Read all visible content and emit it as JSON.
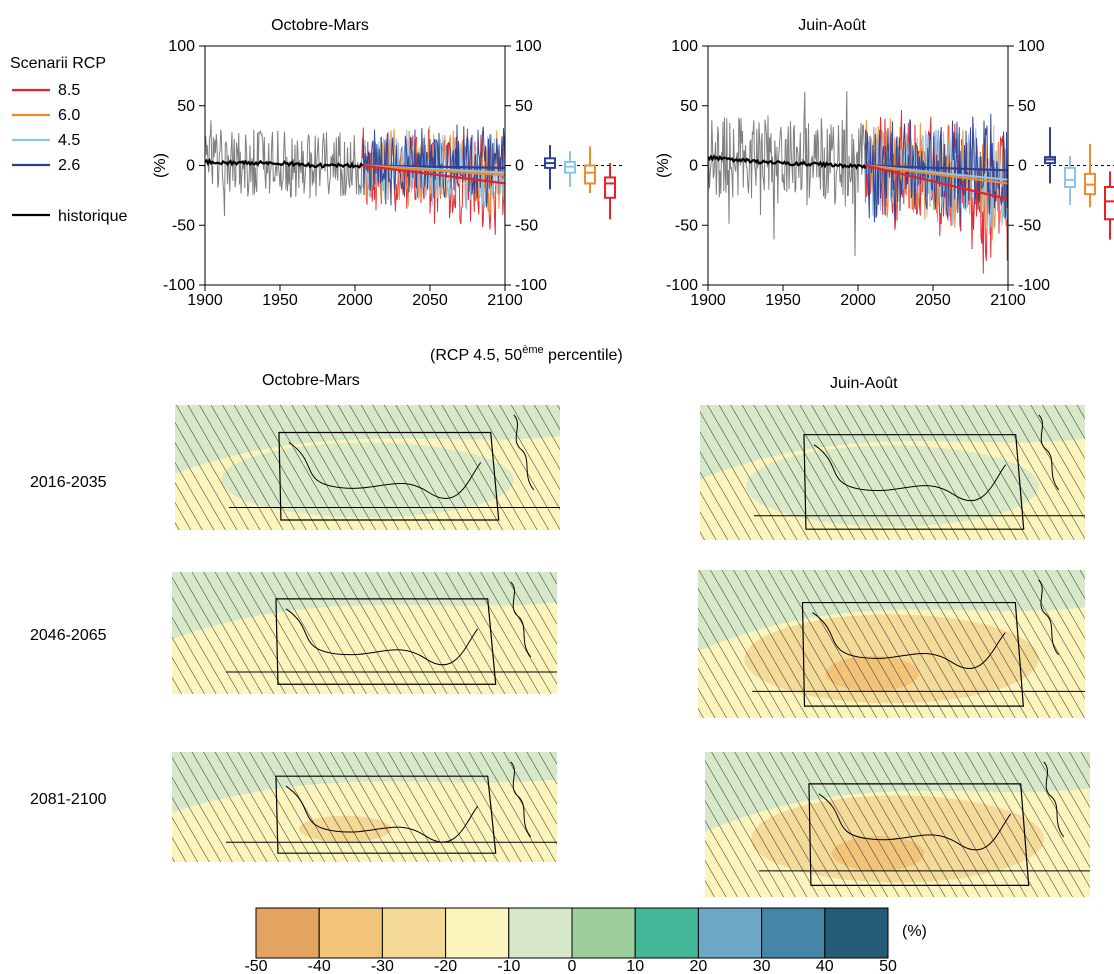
{
  "legend": {
    "title": "Scenarii RCP",
    "items": [
      {
        "label": "8.5",
        "color": "#e8202a"
      },
      {
        "label": "6.0",
        "color": "#f08a2c"
      },
      {
        "label": "4.5",
        "color": "#8ec4e8"
      },
      {
        "label": "2.6",
        "color": "#2e3f94"
      }
    ],
    "historique_label": "historique",
    "historique_color": "#000000"
  },
  "chart_data": [
    {
      "type": "line",
      "title": "Octobre-Mars",
      "ylabel": "(%)",
      "xlim": [
        1900,
        2100
      ],
      "ylim": [
        -100,
        100
      ],
      "xticks": [
        "1900",
        "1950",
        "2000",
        "2050",
        "2100"
      ],
      "yticks": [
        "100",
        "50",
        "0",
        "-50",
        "-100"
      ],
      "right_yticks": [
        "100",
        "50",
        "0",
        "-50",
        "-100"
      ],
      "historical_end": 2005,
      "historique_mean": [
        {
          "x": 1900,
          "y": 3
        },
        {
          "x": 1925,
          "y": 2
        },
        {
          "x": 1950,
          "y": 2
        },
        {
          "x": 1975,
          "y": 0
        },
        {
          "x": 2005,
          "y": 0
        }
      ],
      "historique_envelope": {
        "upper": 28,
        "lower": -28,
        "peaks": 45
      },
      "series": [
        {
          "name": "2.6",
          "color": "#2e3f94",
          "mean": [
            {
              "x": 2005,
              "y": 0
            },
            {
              "x": 2100,
              "y": -2
            }
          ],
          "spread": 30,
          "order": 4
        },
        {
          "name": "4.5",
          "color": "#8ec4e8",
          "mean": [
            {
              "x": 2005,
              "y": 0
            },
            {
              "x": 2100,
              "y": -6
            }
          ],
          "spread": 28,
          "order": 3
        },
        {
          "name": "6.0",
          "color": "#f08a2c",
          "mean": [
            {
              "x": 2005,
              "y": 0
            },
            {
              "x": 2100,
              "y": -8
            }
          ],
          "spread": 30,
          "order": 2
        },
        {
          "name": "8.5",
          "color": "#e8202a",
          "mean": [
            {
              "x": 2005,
              "y": 0
            },
            {
              "x": 2100,
              "y": -15
            }
          ],
          "spread": 32,
          "order": 1
        }
      ],
      "boxplots": [
        {
          "name": "2.6",
          "color": "#2e3f94",
          "min": -20,
          "q1": -2,
          "median": 2,
          "q3": 6,
          "max": 17
        },
        {
          "name": "4.5",
          "color": "#8ec4e8",
          "min": -18,
          "q1": -6,
          "median": -1,
          "q3": 3,
          "max": 12
        },
        {
          "name": "6.0",
          "color": "#f08a2c",
          "min": -23,
          "q1": -15,
          "median": -6,
          "q3": 0,
          "max": 16
        },
        {
          "name": "8.5",
          "color": "#e8202a",
          "min": -45,
          "q1": -27,
          "median": -15,
          "q3": -10,
          "max": 2
        }
      ]
    },
    {
      "type": "line",
      "title": "Juin-Août",
      "ylabel": "(%)",
      "xlim": [
        1900,
        2100
      ],
      "ylim": [
        -100,
        100
      ],
      "xticks": [
        "1900",
        "1950",
        "2000",
        "2050",
        "2100"
      ],
      "yticks": [
        "100",
        "50",
        "0",
        "-50",
        "-100"
      ],
      "right_yticks": [
        "100",
        "50",
        "0",
        "-50",
        "-100"
      ],
      "historical_end": 2005,
      "historique_mean": [
        {
          "x": 1900,
          "y": 7
        },
        {
          "x": 1925,
          "y": 4
        },
        {
          "x": 1950,
          "y": 2
        },
        {
          "x": 1975,
          "y": 1
        },
        {
          "x": 2005,
          "y": -1
        }
      ],
      "historique_envelope": {
        "upper": 40,
        "lower": -35,
        "peaks": 90
      },
      "series": [
        {
          "name": "2.6",
          "color": "#2e3f94",
          "mean": [
            {
              "x": 2005,
              "y": 0
            },
            {
              "x": 2100,
              "y": -4
            }
          ],
          "spread": 40,
          "order": 4
        },
        {
          "name": "4.5",
          "color": "#8ec4e8",
          "mean": [
            {
              "x": 2005,
              "y": 0
            },
            {
              "x": 2100,
              "y": -12
            }
          ],
          "spread": 38,
          "order": 3
        },
        {
          "name": "6.0",
          "color": "#f08a2c",
          "mean": [
            {
              "x": 2005,
              "y": 0
            },
            {
              "x": 2100,
              "y": -15
            }
          ],
          "spread": 40,
          "order": 2
        },
        {
          "name": "8.5",
          "color": "#e8202a",
          "mean": [
            {
              "x": 2005,
              "y": 0
            },
            {
              "x": 2100,
              "y": -28
            }
          ],
          "spread": 45,
          "order": 1
        }
      ],
      "boxplots": [
        {
          "name": "2.6",
          "color": "#2e3f94",
          "min": -15,
          "q1": 2,
          "median": 5,
          "q3": 7,
          "max": 32
        },
        {
          "name": "4.5",
          "color": "#8ec4e8",
          "min": -33,
          "q1": -18,
          "median": -12,
          "q3": -2,
          "max": 8
        },
        {
          "name": "6.0",
          "color": "#f08a2c",
          "min": -35,
          "q1": -24,
          "median": -16,
          "q3": -7,
          "max": 18
        },
        {
          "name": "8.5",
          "color": "#e8202a",
          "min": -62,
          "q1": -45,
          "median": -30,
          "q3": -18,
          "max": -5
        }
      ]
    },
    {
      "type": "heatmap",
      "title": "(RCP 4.5, 50ème percentile)",
      "title_main": "(RCP 4.5, 50",
      "title_sup": "ème",
      "title_end": " percentile)",
      "columns": [
        "Octobre-Mars",
        "Juin-Août"
      ],
      "rows": [
        "2016-2035",
        "2046-2065",
        "2081-2100"
      ],
      "change_percent": [
        [
          -5,
          -10
        ],
        [
          -15,
          -22
        ],
        [
          -20,
          -28
        ]
      ],
      "colorbar": {
        "unit": "(%)",
        "ticks": [
          "-50",
          "-40",
          "-30",
          "-20",
          "-10",
          "0",
          "10",
          "20",
          "30",
          "40",
          "50"
        ],
        "colors": [
          "#e3a462",
          "#f2c47a",
          "#f4d896",
          "#fcf4bd",
          "#d6e8c8",
          "#9ccf9c",
          "#43b898",
          "#6da8c8",
          "#4586a6",
          "#245c78"
        ]
      }
    }
  ]
}
